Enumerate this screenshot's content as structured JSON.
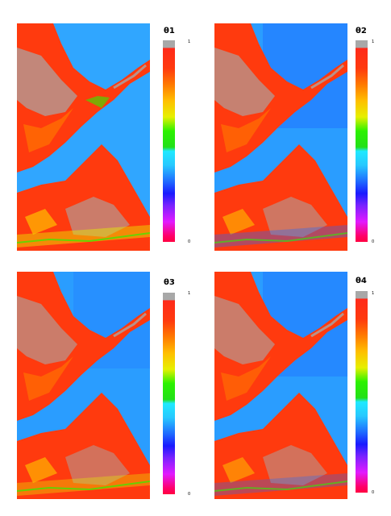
{
  "panels": [
    {
      "title": "θ1",
      "max_label": "1",
      "min_label": "0"
    },
    {
      "title": "θ2",
      "max_label": "1",
      "min_label": "0"
    },
    {
      "title": "θ3",
      "max_label": "1",
      "min_label": "0"
    },
    {
      "title": "θ4",
      "max_label": "1",
      "min_label": "0"
    }
  ],
  "colormap": [
    "#a8a8a8",
    "#ff2a1a",
    "#ff7a00",
    "#ffbf00",
    "#e6f000",
    "#2cf200",
    "#1fe9ff",
    "#27c8ff",
    "#1f6bff",
    "#1a1aff",
    "#7a22ff",
    "#e11aff",
    "#ff0040"
  ],
  "colors": {
    "water": "#2a9dff",
    "land_high": "#ff3a0e",
    "land_mid": "#ffbf00",
    "gray": "#a8a8a8",
    "background": "#ffffff"
  }
}
